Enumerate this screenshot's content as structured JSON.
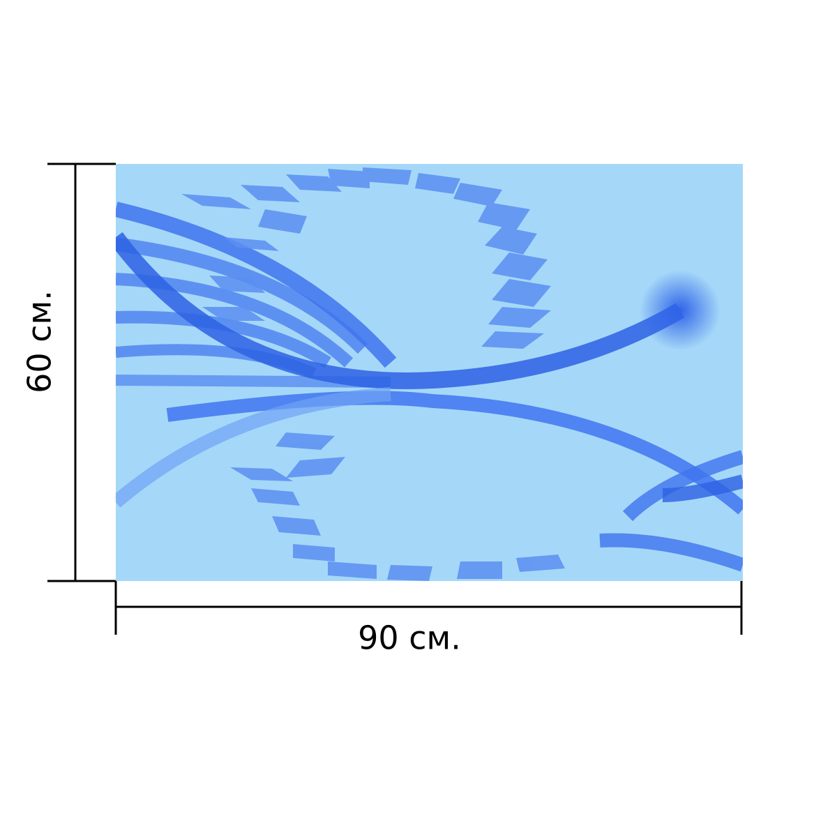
{
  "dimensions": {
    "width_label": "90 см.",
    "height_label": "60 см."
  }
}
